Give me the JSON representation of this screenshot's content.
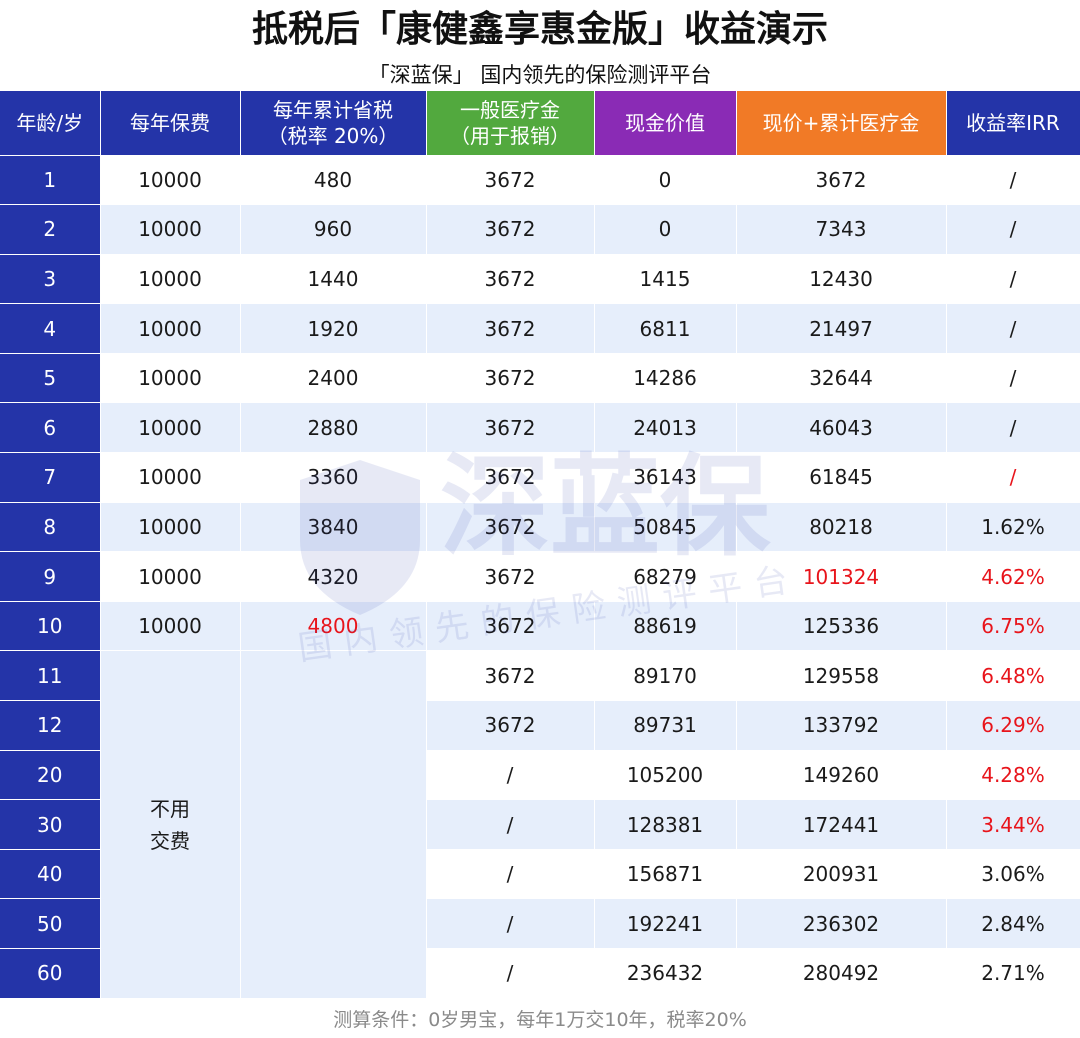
{
  "title": "抵税后「康健鑫享惠金版」收益演示",
  "subtitle": "「深蓝保」 国内领先的保险测评平台",
  "headers": {
    "age": "年龄/岁",
    "premium": "每年保费",
    "tax_line1": "每年累计省税",
    "tax_line2": "（税率 20%）",
    "medical_line1": "一般医疗金",
    "medical_line2": "（用于报销）",
    "cash": "现金价值",
    "cash_plus": "现价+累计医疗金",
    "irr": "收益率IRR"
  },
  "header_colors": {
    "blue": "#2434a8",
    "green": "#52a93e",
    "purple": "#8a2bb5",
    "orange": "#f17a26",
    "highlight_red": "#e8141b"
  },
  "rows": [
    {
      "age": "1",
      "premium": "10000",
      "tax": "480",
      "medical": "3672",
      "cash": "0",
      "total": "3672",
      "irr": "/"
    },
    {
      "age": "2",
      "premium": "10000",
      "tax": "960",
      "medical": "3672",
      "cash": "0",
      "total": "7343",
      "irr": "/"
    },
    {
      "age": "3",
      "premium": "10000",
      "tax": "1440",
      "medical": "3672",
      "cash": "1415",
      "total": "12430",
      "irr": "/"
    },
    {
      "age": "4",
      "premium": "10000",
      "tax": "1920",
      "medical": "3672",
      "cash": "6811",
      "total": "21497",
      "irr": "/"
    },
    {
      "age": "5",
      "premium": "10000",
      "tax": "2400",
      "medical": "3672",
      "cash": "14286",
      "total": "32644",
      "irr": "/"
    },
    {
      "age": "6",
      "premium": "10000",
      "tax": "2880",
      "medical": "3672",
      "cash": "24013",
      "total": "46043",
      "irr": "/"
    },
    {
      "age": "7",
      "premium": "10000",
      "tax": "3360",
      "medical": "3672",
      "cash": "36143",
      "total": "61845",
      "irr": "/"
    },
    {
      "age": "8",
      "premium": "10000",
      "tax": "3840",
      "medical": "3672",
      "cash": "50845",
      "total": "80218",
      "irr": "1.62%"
    },
    {
      "age": "9",
      "premium": "10000",
      "tax": "4320",
      "medical": "3672",
      "cash": "68279",
      "total": "101324",
      "irr": "4.62%"
    },
    {
      "age": "10",
      "premium": "10000",
      "tax": "4800",
      "medical": "3672",
      "cash": "88619",
      "total": "125336",
      "irr": "6.75%"
    },
    {
      "age": "11",
      "medical": "3672",
      "cash": "89170",
      "total": "129558",
      "irr": "6.48%"
    },
    {
      "age": "12",
      "medical": "3672",
      "cash": "89731",
      "total": "133792",
      "irr": "6.29%"
    },
    {
      "age": "20",
      "medical": "/",
      "cash": "105200",
      "total": "149260",
      "irr": "4.28%"
    },
    {
      "age": "30",
      "medical": "/",
      "cash": "128381",
      "total": "172441",
      "irr": "3.44%"
    },
    {
      "age": "40",
      "medical": "/",
      "cash": "156871",
      "total": "200931",
      "irr": "3.06%"
    },
    {
      "age": "50",
      "medical": "/",
      "cash": "192241",
      "total": "236302",
      "irr": "2.84%"
    },
    {
      "age": "60",
      "medical": "/",
      "cash": "236432",
      "total": "280492",
      "irr": "2.71%"
    }
  ],
  "no_fee_line1": "不用",
  "no_fee_line2": "交费",
  "watermark_brand": "深蓝保",
  "watermark_tagline": "国内领先的保险测评平台",
  "footnote": "测算条件：0岁男宝，每年1万交10年，税率20%"
}
